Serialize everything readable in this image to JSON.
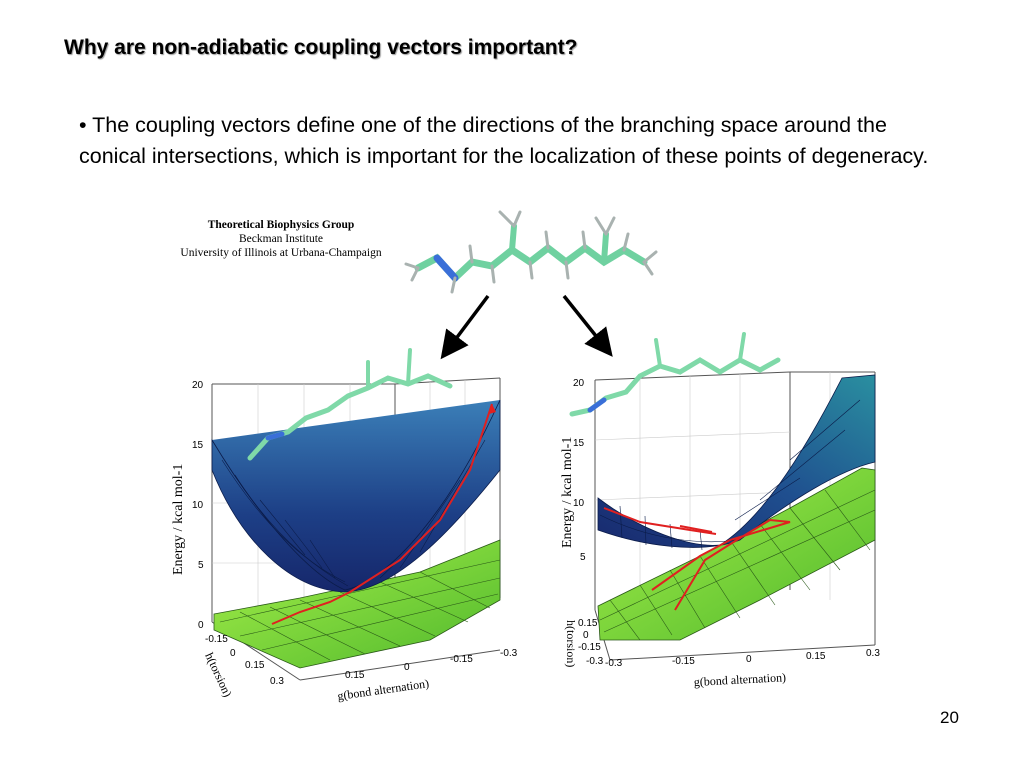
{
  "slide": {
    "title": "Why are non-adiabatic coupling vectors important?",
    "bullet": "• The coupling vectors define one of the directions of the branching space around the conical intersections, which is important for the localization of these points of degeneracy.",
    "page_number": "20"
  },
  "credit": {
    "group": "Theoretical Biophysics Group",
    "institute": "Beckman Institute",
    "university": "University of Illinois at Urbana-Champaign"
  },
  "left_plot": {
    "ylabel": "Energy / kcal mol-1",
    "z_ticks": [
      "20",
      "15",
      "10",
      "5",
      "0"
    ],
    "h_ticks": [
      "-0.15",
      "0",
      "0.15",
      "0.3"
    ],
    "g_ticks": [
      "0.15",
      "0",
      "-0.15",
      "-0.3"
    ],
    "h_label": "h(torsion)",
    "g_label": "g(bond alternation)"
  },
  "right_plot": {
    "ylabel": "Energy / kcal mol-1",
    "z_ticks": [
      "20",
      "15",
      "10",
      "5"
    ],
    "h_ticks": [
      "0.15",
      "0",
      "-0.15",
      "-0.3"
    ],
    "g_ticks": [
      "-0.3",
      "-0.15",
      "0",
      "0.15",
      "0.3"
    ],
    "h_label": "h(torsion)",
    "g_label": "g(bond alternation)"
  },
  "colors": {
    "upper_surface": "#1f4f8f",
    "lower_surface": "#79d93a",
    "path": "#e02020",
    "molecule": "#7fd9a8"
  }
}
